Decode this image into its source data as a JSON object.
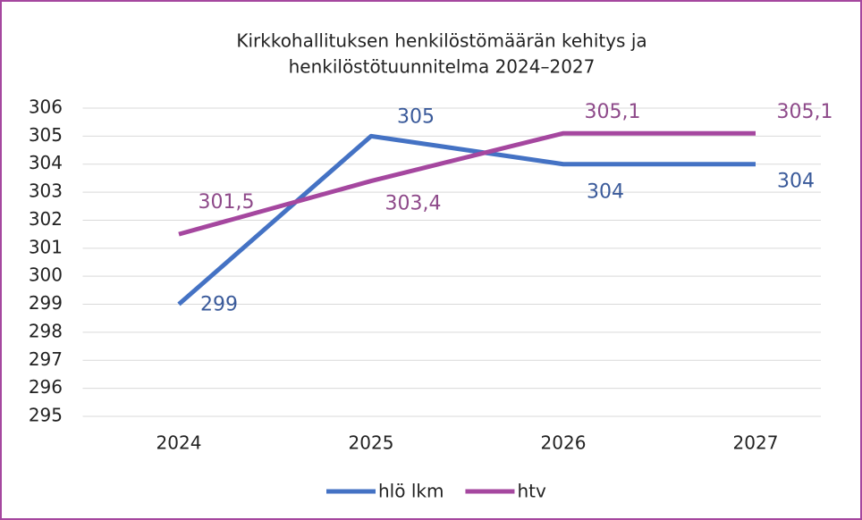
{
  "chart_data": {
    "type": "line",
    "title": [
      "Kirkkohallituksen henkilöstömäärän kehitys ja",
      "henkilöstötuunnitelma 2024–2027"
    ],
    "categories": [
      "2024",
      "2025",
      "2026",
      "2027"
    ],
    "series": [
      {
        "name": "hlö lkm",
        "color": "#4472c4",
        "values": [
          299,
          305,
          304,
          304
        ]
      },
      {
        "name": "htv",
        "color": "#a5479f",
        "values": [
          301.5,
          303.4,
          305.1,
          305.1
        ],
        "value_labels": [
          "301,5",
          "303,4",
          "305,1",
          "305,1"
        ]
      }
    ],
    "ylim": [
      295,
      306
    ],
    "yticks": [
      295,
      296,
      297,
      298,
      299,
      300,
      301,
      302,
      303,
      304,
      305,
      306
    ],
    "grid": true,
    "legend": "bottom"
  }
}
